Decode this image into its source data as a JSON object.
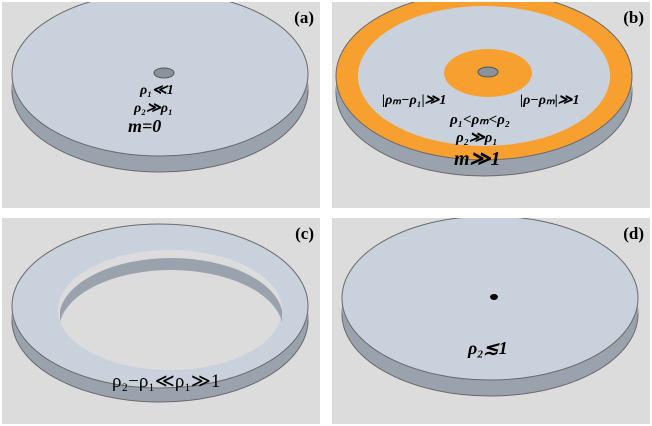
{
  "colors": {
    "background": "#dcdcdc",
    "disk_top": "#c9d2dc",
    "disk_side": "#9aa3ad",
    "ring_orange": "#f7a030",
    "outline": "#6a6a6a"
  },
  "panels": {
    "a": {
      "label": "(a)",
      "eq1": "ρ₁≪1",
      "eq2": "ρ₂≫ρ₁",
      "eq3": "m=0"
    },
    "b": {
      "label": "(b)",
      "eq_left": "|ρₘ−ρ₁|≫1",
      "eq_right": "|ρ−ρₘ|≫1",
      "eq1": "ρ₁<ρₘ<ρ₂",
      "eq2": "ρ₂≫ρ₁",
      "eq3": "m≫1"
    },
    "c": {
      "label": "(c)",
      "eq1": "ρ₂−ρ₁≪ρ₁≫1"
    },
    "d": {
      "label": "(d)",
      "eq1": "ρ₂≲1"
    }
  }
}
